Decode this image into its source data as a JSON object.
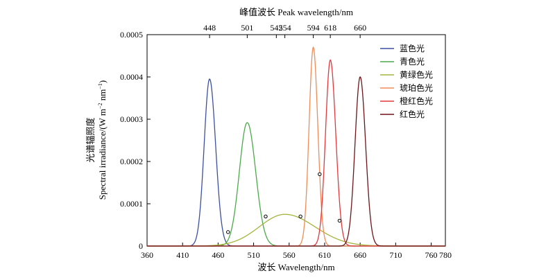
{
  "chart_data": {
    "type": "line",
    "title": "",
    "xlabel": "波长 Wavelength/nm",
    "top_xlabel": "峰值波长 Peak wavelength/nm",
    "ylabel_cn": "光谱辐照度",
    "ylabel_en": "Spectral irradiance/(W m",
    "ylabel_units": {
      "exp1": "−2",
      "mid": " nm",
      "exp2": "−1",
      "close": ")"
    },
    "xlim": [
      360,
      780
    ],
    "ylim": [
      0,
      0.0005
    ],
    "x_ticks": [
      360,
      410,
      460,
      510,
      560,
      610,
      660,
      710,
      760,
      780
    ],
    "x_tick_labels": [
      "360",
      "410",
      "460",
      "510",
      "560",
      "610",
      "660",
      "710",
      "760",
      "780"
    ],
    "y_ticks": [
      0,
      0.0001,
      0.0002,
      0.0003,
      0.0004,
      0.0005
    ],
    "y_tick_labels": [
      "0",
      "0.0001",
      "0.0002",
      "0.0003",
      "0.0004",
      "0.0005"
    ],
    "top_ticks": [
      448,
      501,
      542,
      554,
      594,
      618,
      660
    ],
    "top_tick_labels": [
      "448",
      "501",
      "542",
      "554",
      "594",
      "618",
      "660"
    ],
    "legend_position": "top-right",
    "grid": false,
    "series": [
      {
        "name": "蓝色光",
        "color": "#3b4fa0",
        "peak": 448,
        "amplitude": 0.000395,
        "fwhm_left": 18,
        "fwhm_right": 20
      },
      {
        "name": "青色光",
        "color": "#4aaa48",
        "peak": 501,
        "amplitude": 0.000292,
        "fwhm_left": 26,
        "fwhm_right": 28
      },
      {
        "name": "黄绿色光",
        "color": "#a4b43a",
        "peak": 554,
        "amplitude": 7.5e-05,
        "fwhm_left": 85,
        "fwhm_right": 100
      },
      {
        "name": "琥珀色光",
        "color": "#ef8c58",
        "peak": 594,
        "amplitude": 0.00047,
        "fwhm_left": 14,
        "fwhm_right": 15
      },
      {
        "name": "橙红色光",
        "color": "#e2383c",
        "peak": 618,
        "amplitude": 0.00044,
        "fwhm_left": 16,
        "fwhm_right": 18
      },
      {
        "name": "红色光",
        "color": "#6e1418",
        "peak": 660,
        "amplitude": 0.0004,
        "fwhm_left": 17,
        "fwhm_right": 18
      }
    ],
    "crossing_points": [
      {
        "x": 474,
        "y": 3.3e-05
      },
      {
        "x": 527,
        "y": 7e-05
      },
      {
        "x": 576,
        "y": 7e-05
      },
      {
        "x": 603,
        "y": 0.00017
      },
      {
        "x": 631,
        "y": 6e-05
      }
    ]
  }
}
